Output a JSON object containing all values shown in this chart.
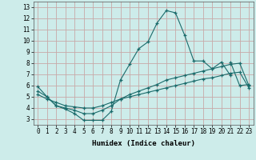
{
  "title": "",
  "xlabel": "Humidex (Indice chaleur)",
  "ylabel": "",
  "bg_color": "#cdecea",
  "grid_color": "#c8a8a8",
  "line_color": "#1a6b6b",
  "xlim": [
    -0.5,
    23.5
  ],
  "ylim": [
    2.5,
    13.5
  ],
  "xticks": [
    0,
    1,
    2,
    3,
    4,
    5,
    6,
    7,
    8,
    9,
    10,
    11,
    12,
    13,
    14,
    15,
    16,
    17,
    18,
    19,
    20,
    21,
    22,
    23
  ],
  "yticks": [
    3,
    4,
    5,
    6,
    7,
    8,
    9,
    10,
    11,
    12,
    13
  ],
  "series": [
    {
      "x": [
        0,
        1,
        2,
        3,
        4,
        5,
        6,
        7,
        8,
        9,
        10,
        11,
        12,
        13,
        14,
        15,
        16,
        17,
        18,
        19,
        20,
        21
      ],
      "y": [
        5.9,
        5.0,
        4.2,
        3.9,
        3.5,
        2.9,
        2.9,
        2.9,
        3.7,
        6.5,
        7.9,
        9.3,
        9.9,
        11.6,
        12.7,
        12.5,
        10.5,
        8.2,
        8.2,
        7.5,
        8.1,
        6.9
      ]
    },
    {
      "x": [
        21,
        22,
        23
      ],
      "y": [
        8.1,
        6.0,
        6.1
      ]
    },
    {
      "x": [
        0,
        1,
        2,
        3,
        4,
        5,
        6,
        7,
        8,
        9,
        10,
        11,
        12,
        13,
        14,
        15,
        16,
        17,
        18,
        19,
        20,
        21,
        22,
        23
      ],
      "y": [
        5.5,
        5.0,
        4.2,
        4.0,
        3.8,
        3.5,
        3.5,
        3.8,
        4.2,
        4.8,
        5.2,
        5.5,
        5.8,
        6.1,
        6.5,
        6.7,
        6.9,
        7.1,
        7.3,
        7.5,
        7.7,
        7.9,
        8.0,
        6.0
      ]
    },
    {
      "x": [
        0,
        1,
        2,
        3,
        4,
        5,
        6,
        7,
        8,
        9,
        10,
        11,
        12,
        13,
        14,
        15,
        16,
        17,
        18,
        19,
        20,
        21,
        22,
        23
      ],
      "y": [
        5.2,
        4.8,
        4.5,
        4.2,
        4.1,
        4.0,
        4.0,
        4.2,
        4.5,
        4.8,
        5.0,
        5.2,
        5.4,
        5.6,
        5.8,
        6.0,
        6.2,
        6.4,
        6.6,
        6.7,
        6.9,
        7.1,
        7.2,
        5.8
      ]
    }
  ]
}
